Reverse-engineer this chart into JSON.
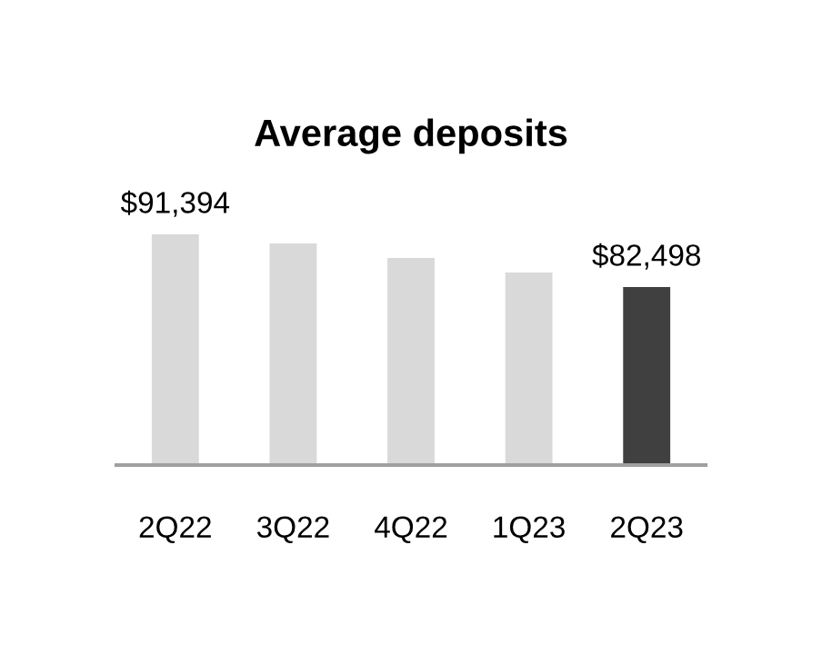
{
  "chart_data": {
    "type": "bar",
    "title": "Average deposits",
    "categories": [
      "2Q22",
      "3Q22",
      "4Q22",
      "1Q23",
      "2Q23"
    ],
    "values": [
      91394,
      89860,
      87406,
      84952,
      82498
    ],
    "colors": [
      "#d9d9d9",
      "#d9d9d9",
      "#d9d9d9",
      "#d9d9d9",
      "#404040"
    ],
    "value_labels": [
      "$91,394",
      null,
      null,
      null,
      "$82,498"
    ],
    "tick_labels": "x",
    "grid": false,
    "legend": false
  }
}
